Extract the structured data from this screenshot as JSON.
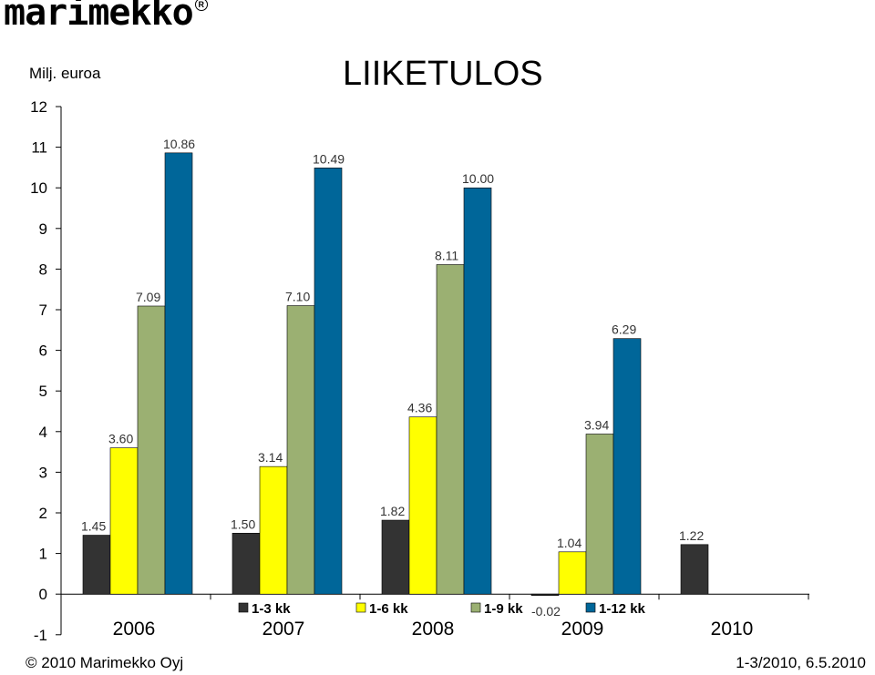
{
  "header": {
    "logo_text": "marimekko",
    "logo_reg": "R",
    "unit": "Milj. euroa",
    "title": "LIIKETULOS"
  },
  "footer": {
    "copyright": "© 2010 Marimekko Oyj",
    "period": "1-3/2010, 6.5.2010"
  },
  "colors": {
    "q1": "#333333",
    "h1": "#ffff00",
    "m9": "#9bb072",
    "fy": "#006699"
  },
  "chart_data": {
    "type": "bar",
    "title": "LIIKETULOS",
    "ylabel": "Milj. euroa",
    "ylim": [
      -1,
      12
    ],
    "yticks": [
      "12",
      "11",
      "10",
      "9",
      "8",
      "7",
      "6",
      "5",
      "4",
      "3",
      "2",
      "1",
      "0",
      "-1"
    ],
    "categories": [
      "2006",
      "2007",
      "2008",
      "2009",
      "2010"
    ],
    "legend_position": "bottom",
    "series": [
      {
        "name": "1-3 kk",
        "color": "#333333",
        "values": [
          1.45,
          1.5,
          1.82,
          -0.02,
          1.22
        ],
        "labels": [
          "1.45",
          "1.50",
          "1.82",
          "-0.02",
          "1.22"
        ]
      },
      {
        "name": "1-6 kk",
        "color": "#ffff00",
        "values": [
          3.6,
          3.14,
          4.36,
          1.04,
          null
        ],
        "labels": [
          "3.60",
          "3.14",
          "4.36",
          "1.04",
          ""
        ]
      },
      {
        "name": "1-9 kk",
        "color": "#9bb072",
        "values": [
          7.09,
          7.1,
          8.11,
          3.94,
          null
        ],
        "labels": [
          "7.09",
          "7.10",
          "8.11",
          "3.94",
          ""
        ]
      },
      {
        "name": "1-12 kk",
        "color": "#006699",
        "values": [
          10.86,
          10.49,
          10.0,
          6.29,
          null
        ],
        "labels": [
          "10.86",
          "10.49",
          "10.00",
          "6.29",
          ""
        ]
      }
    ]
  }
}
